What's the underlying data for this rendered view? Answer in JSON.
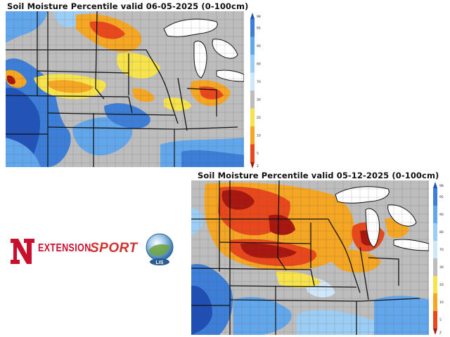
{
  "maps": [
    {
      "title": "Soil Moisture Percentile valid 06-05-2025 (0-100cm)",
      "date": "06-05-2025",
      "depth": "0-100cm"
    },
    {
      "title": "Soil Moisture Percentile valid 05-12-2025 (0-100cm)",
      "date": "05-12-2025",
      "depth": "0-100cm"
    }
  ],
  "colorbar": {
    "ticks": [
      "98",
      "95",
      "90",
      "80",
      "70",
      "30",
      "20",
      "10",
      "5",
      "2"
    ],
    "colors": {
      "98": "#1f4fb5",
      "95": "#3d7fd8",
      "90": "#62a6ec",
      "80": "#9ccdf5",
      "70": "#cfe7f8",
      "30": "#bdbdbd",
      "20": "#f7e34c",
      "10": "#f5a623",
      "5": "#e8481c",
      "2": "#a8170f"
    }
  },
  "logos": {
    "nebraska": "N",
    "extension": "EXTENSION",
    "sport": "SPORT",
    "lis": "LIS"
  }
}
